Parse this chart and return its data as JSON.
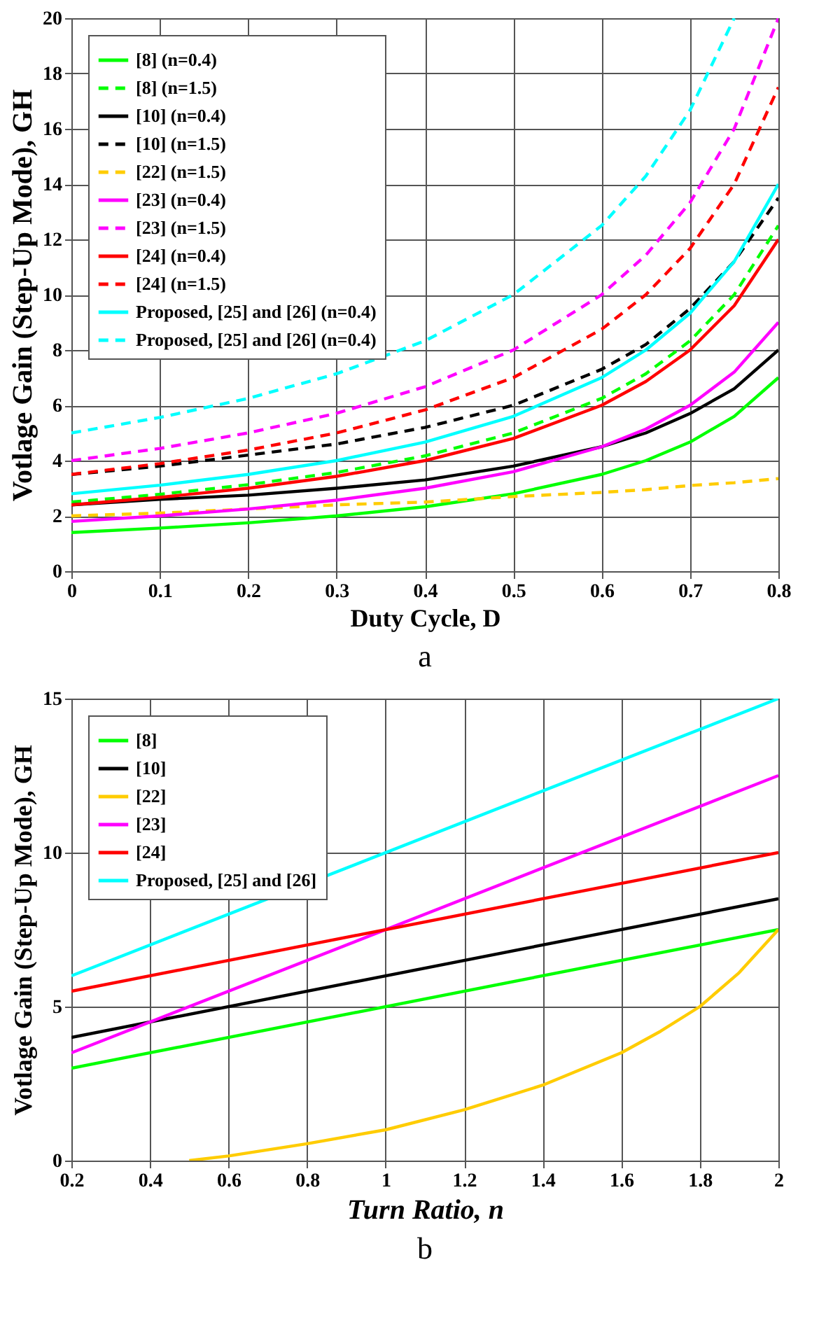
{
  "chart_data": [
    {
      "type": "line",
      "xlabel": "Duty Cycle, D",
      "ylabel": "Votlage Gain (Step-Up Mode), GH",
      "xlim": [
        0,
        0.8
      ],
      "ylim": [
        0,
        20
      ],
      "xticks": [
        0,
        0.1,
        0.2,
        0.3,
        0.4,
        0.5,
        0.6,
        0.7,
        0.8
      ],
      "yticks": [
        0,
        2,
        4,
        6,
        8,
        10,
        12,
        14,
        16,
        18,
        20
      ],
      "grid": true,
      "legend": "top left",
      "annotations": [
        "a"
      ],
      "series": [
        {
          "name": "[8] (n=0.4)",
          "color": "#00ff00",
          "line_style": "solid",
          "x": [
            0,
            0.1,
            0.2,
            0.3,
            0.4,
            0.5,
            0.6,
            0.65,
            0.7,
            0.75,
            0.8
          ],
          "values": [
            1.4,
            1.56,
            1.75,
            2.0,
            2.33,
            2.8,
            3.5,
            4.0,
            4.67,
            5.6,
            7
          ]
        },
        {
          "name": "[8] (n=1.5)",
          "color": "#00ff00",
          "line_style": "dashed",
          "x": [
            0,
            0.1,
            0.2,
            0.3,
            0.4,
            0.5,
            0.6,
            0.65,
            0.7,
            0.75,
            0.8
          ],
          "values": [
            2.5,
            2.78,
            3.13,
            3.57,
            4.17,
            5,
            6.25,
            7.14,
            8.33,
            10,
            12.5
          ]
        },
        {
          "name": "[10] (n=0.4)",
          "color": "#000000",
          "line_style": "solid",
          "x": [
            0,
            0.1,
            0.2,
            0.3,
            0.4,
            0.5,
            0.6,
            0.65,
            0.7,
            0.75,
            0.8
          ],
          "values": [
            2.4,
            2.6,
            2.75,
            3.0,
            3.3,
            3.8,
            4.5,
            5.0,
            5.7,
            6.6,
            8
          ]
        },
        {
          "name": "[10] (n=1.5)",
          "color": "#000000",
          "line_style": "dashed",
          "x": [
            0,
            0.1,
            0.2,
            0.3,
            0.4,
            0.5,
            0.6,
            0.65,
            0.7,
            0.75,
            0.8
          ],
          "values": [
            3.5,
            3.8,
            4.2,
            4.6,
            5.2,
            6.0,
            7.3,
            8.2,
            9.5,
            11.2,
            13.5
          ]
        },
        {
          "name": "[22] (n=1.5)",
          "color": "#ffcc00",
          "line_style": "dashed",
          "x": [
            0,
            0.1,
            0.2,
            0.3,
            0.4,
            0.5,
            0.6,
            0.65,
            0.7,
            0.75,
            0.8
          ],
          "values": [
            2,
            2.1,
            2.25,
            2.4,
            2.5,
            2.7,
            2.85,
            2.95,
            3.1,
            3.2,
            3.35
          ]
        },
        {
          "name": "[23] (n=0.4)",
          "color": "#ff00ff",
          "line_style": "solid",
          "x": [
            0,
            0.1,
            0.2,
            0.3,
            0.4,
            0.5,
            0.6,
            0.65,
            0.7,
            0.75,
            0.8
          ],
          "values": [
            1.8,
            2,
            2.25,
            2.57,
            3,
            3.6,
            4.5,
            5.14,
            6,
            7.2,
            9
          ]
        },
        {
          "name": "[23] (n=1.5)",
          "color": "#ff00ff",
          "line_style": "dashed",
          "x": [
            0,
            0.1,
            0.2,
            0.3,
            0.4,
            0.5,
            0.6,
            0.65,
            0.7,
            0.75,
            0.8
          ],
          "values": [
            4,
            4.44,
            5,
            5.71,
            6.67,
            8,
            10,
            11.43,
            13.33,
            16,
            20
          ]
        },
        {
          "name": "[24] (n=0.4)",
          "color": "#ff0000",
          "line_style": "solid",
          "x": [
            0,
            0.1,
            0.2,
            0.3,
            0.4,
            0.5,
            0.6,
            0.65,
            0.7,
            0.75,
            0.8
          ],
          "values": [
            2.4,
            2.67,
            3,
            3.43,
            4,
            4.8,
            6,
            6.86,
            8,
            9.6,
            12
          ]
        },
        {
          "name": "[24] (n=1.5)",
          "color": "#ff0000",
          "line_style": "dashed",
          "x": [
            0,
            0.1,
            0.2,
            0.3,
            0.4,
            0.5,
            0.6,
            0.65,
            0.7,
            0.75,
            0.8
          ],
          "values": [
            3.5,
            3.89,
            4.38,
            5,
            5.83,
            7,
            8.75,
            10,
            11.67,
            14,
            17.5
          ]
        },
        {
          "name": "Proposed, [25] and [26] (n=0.4)",
          "color": "#00ffff",
          "line_style": "solid",
          "x": [
            0,
            0.1,
            0.2,
            0.3,
            0.4,
            0.5,
            0.6,
            0.65,
            0.7,
            0.75,
            0.8
          ],
          "values": [
            2.8,
            3.11,
            3.5,
            4,
            4.67,
            5.6,
            7,
            8,
            9.33,
            11.2,
            14
          ]
        },
        {
          "name": "Proposed, [25] and [26] (n=0.4)",
          "color": "#00ffff",
          "line_style": "dashed",
          "x": [
            0,
            0.1,
            0.2,
            0.3,
            0.4,
            0.5,
            0.6,
            0.65,
            0.7,
            0.75
          ],
          "values": [
            5,
            5.56,
            6.25,
            7.14,
            8.33,
            10,
            12.5,
            14.29,
            16.67,
            20
          ]
        }
      ]
    },
    {
      "type": "line",
      "xlabel": "Turn Ratio, n",
      "ylabel": "Votlage Gain (Step-Up Mode), GH",
      "xlim": [
        0.2,
        2
      ],
      "ylim": [
        0,
        15
      ],
      "xticks": [
        0.2,
        0.4,
        0.6,
        0.8,
        1,
        1.2,
        1.4,
        1.6,
        1.8,
        2
      ],
      "yticks": [
        0,
        5,
        10,
        15
      ],
      "grid": true,
      "legend": "top left",
      "annotations": [
        "b"
      ],
      "series": [
        {
          "name": "[8]",
          "color": "#00ff00",
          "x": [
            0.2,
            2
          ],
          "values": [
            3,
            7.5
          ]
        },
        {
          "name": "[10]",
          "color": "#000000",
          "x": [
            0.2,
            2
          ],
          "values": [
            4,
            8.5
          ]
        },
        {
          "name": "[22]",
          "color": "#ffcc00",
          "x": [
            0.5,
            0.6,
            0.8,
            1.0,
            1.2,
            1.4,
            1.6,
            1.7,
            1.8,
            1.9,
            2.0
          ],
          "values": [
            0,
            0.15,
            0.55,
            1.0,
            1.65,
            2.45,
            3.5,
            4.2,
            5.0,
            6.1,
            7.5
          ]
        },
        {
          "name": "[23]",
          "color": "#ff00ff",
          "x": [
            0.2,
            2
          ],
          "values": [
            3.5,
            12.5
          ]
        },
        {
          "name": "[24]",
          "color": "#ff0000",
          "x": [
            0.2,
            2
          ],
          "values": [
            5.5,
            10
          ]
        },
        {
          "name": "Proposed, [25] and [26]",
          "color": "#00ffff",
          "x": [
            0.2,
            2
          ],
          "values": [
            6,
            15
          ]
        }
      ]
    }
  ]
}
